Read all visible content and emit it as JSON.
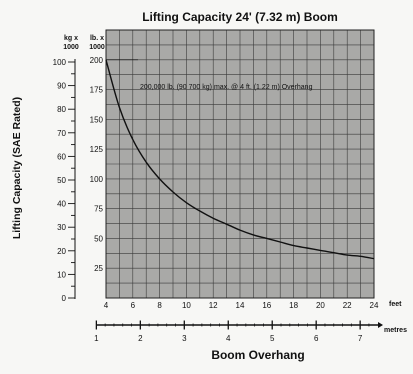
{
  "chart_data": {
    "type": "line",
    "title": "Lifting Capacity 24' (7.32 m) Boom",
    "ylabel": "Lifting Capacity (SAE Rated)",
    "xlabel": "Boom Overhang",
    "annotation": "200,000 lb. (90 700 kg) max. @ 4 ft. (1.22 m) Overhang",
    "x_feet": {
      "unit": "feet",
      "ticks": [
        "4",
        "6",
        "8",
        "10",
        "12",
        "14",
        "16",
        "18",
        "20",
        "22",
        "24"
      ],
      "range": [
        4,
        24
      ]
    },
    "x_metres": {
      "unit": "metres",
      "ticks": [
        "1",
        "2",
        "3",
        "4",
        "5",
        "6",
        "7"
      ]
    },
    "y_lb": {
      "unit_top": "lb. x",
      "unit_bottom": "1000",
      "ticks": [
        "25",
        "50",
        "75",
        "100",
        "125",
        "150",
        "175",
        "200"
      ],
      "range": [
        0,
        225
      ]
    },
    "y_kg": {
      "unit_top": "kg x",
      "unit_bottom": "1000",
      "ticks": [
        "0",
        "10",
        "20",
        "30",
        "40",
        "50",
        "60",
        "70",
        "80",
        "90",
        "100"
      ]
    },
    "grid": true,
    "series": [
      {
        "x": [
          4,
          5,
          6,
          7,
          8,
          9,
          10,
          11,
          12,
          13,
          14,
          15,
          16,
          17,
          18,
          19,
          20,
          21,
          22,
          23,
          24
        ],
        "y": [
          200,
          160,
          133,
          114,
          100,
          89,
          80,
          73,
          67,
          62,
          57,
          53,
          50,
          47,
          44,
          42,
          40,
          38,
          36,
          35,
          33
        ]
      }
    ]
  }
}
